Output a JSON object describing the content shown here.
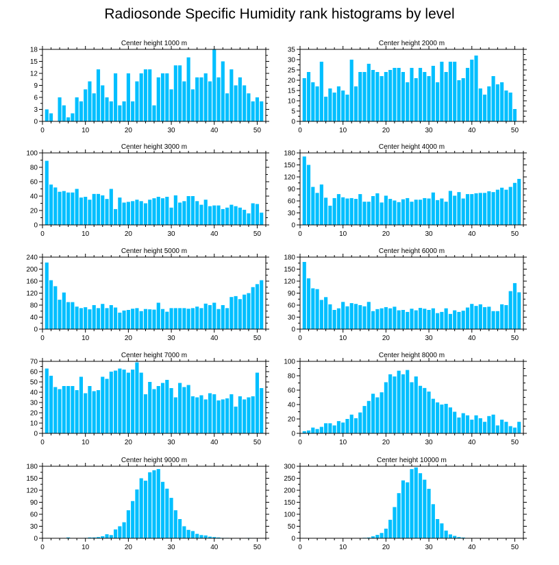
{
  "figure": {
    "title": "Radiosonde Specific Humidity rank histograms by level"
  },
  "style": {
    "bar_color": "#00bfff",
    "axis_color": "#000000"
  },
  "chart_data": [
    {
      "type": "bar",
      "title": "Center height 1000 m",
      "xlim": [
        0,
        52
      ],
      "xticks": [
        0,
        10,
        20,
        30,
        40,
        50
      ],
      "ylim": [
        0,
        18
      ],
      "yticks": [
        0,
        3,
        6,
        9,
        12,
        15,
        18
      ],
      "x": [
        1,
        2,
        3,
        4,
        5,
        6,
        7,
        8,
        9,
        10,
        11,
        12,
        13,
        14,
        15,
        16,
        17,
        18,
        19,
        20,
        21,
        22,
        23,
        24,
        25,
        26,
        27,
        28,
        29,
        30,
        31,
        32,
        33,
        34,
        35,
        36,
        37,
        38,
        39,
        40,
        41,
        42,
        43,
        44,
        45,
        46,
        47,
        48,
        49,
        50,
        51
      ],
      "values": [
        3,
        2,
        0,
        6,
        4,
        1,
        2,
        6,
        5,
        8,
        10,
        7,
        13,
        9,
        6,
        5,
        12,
        4,
        5,
        12,
        5,
        10,
        12,
        13,
        13,
        4,
        11,
        12,
        12,
        8,
        14,
        14,
        10,
        16,
        8,
        11,
        11,
        12,
        10,
        18,
        11,
        15,
        7,
        13,
        9,
        11,
        9,
        7,
        5,
        6,
        5
      ]
    },
    {
      "type": "bar",
      "title": "Center height 2000 m",
      "xlim": [
        0,
        52
      ],
      "xticks": [
        0,
        10,
        20,
        30,
        40,
        50
      ],
      "ylim": [
        0,
        35
      ],
      "yticks": [
        0,
        5,
        10,
        15,
        20,
        25,
        30,
        35
      ],
      "x": [
        1,
        2,
        3,
        4,
        5,
        6,
        7,
        8,
        9,
        10,
        11,
        12,
        13,
        14,
        15,
        16,
        17,
        18,
        19,
        20,
        21,
        22,
        23,
        24,
        25,
        26,
        27,
        28,
        29,
        30,
        31,
        32,
        33,
        34,
        35,
        36,
        37,
        38,
        39,
        40,
        41,
        42,
        43,
        44,
        45,
        46,
        47,
        48,
        49,
        50,
        51
      ],
      "values": [
        21,
        24,
        19,
        17,
        29,
        12,
        16,
        14,
        17,
        15,
        13,
        30,
        17,
        24,
        24,
        28,
        25,
        24,
        22,
        24,
        25,
        26,
        26,
        24,
        19,
        26,
        21,
        26,
        24,
        22,
        27,
        19,
        29,
        24,
        29,
        29,
        20,
        21,
        26,
        30,
        32,
        16,
        13,
        17,
        22,
        18,
        19,
        15,
        14,
        6,
        0
      ]
    },
    {
      "type": "bar",
      "title": "Center height 3000 m",
      "xlim": [
        0,
        52
      ],
      "xticks": [
        0,
        10,
        20,
        30,
        40,
        50
      ],
      "ylim": [
        0,
        100
      ],
      "yticks": [
        0,
        20,
        40,
        60,
        80,
        100
      ],
      "x": [
        1,
        2,
        3,
        4,
        5,
        6,
        7,
        8,
        9,
        10,
        11,
        12,
        13,
        14,
        15,
        16,
        17,
        18,
        19,
        20,
        21,
        22,
        23,
        24,
        25,
        26,
        27,
        28,
        29,
        30,
        31,
        32,
        33,
        34,
        35,
        36,
        37,
        38,
        39,
        40,
        41,
        42,
        43,
        44,
        45,
        46,
        47,
        48,
        49,
        50,
        51
      ],
      "values": [
        89,
        56,
        52,
        46,
        47,
        45,
        45,
        50,
        38,
        39,
        35,
        43,
        43,
        41,
        36,
        50,
        22,
        38,
        31,
        32,
        33,
        35,
        33,
        30,
        35,
        37,
        39,
        37,
        39,
        24,
        41,
        31,
        33,
        40,
        40,
        33,
        28,
        35,
        26,
        27,
        27,
        22,
        24,
        28,
        26,
        24,
        21,
        16,
        30,
        29,
        17
      ]
    },
    {
      "type": "bar",
      "title": "Center height 4000 m",
      "xlim": [
        0,
        52
      ],
      "xticks": [
        0,
        10,
        20,
        30,
        40,
        50
      ],
      "ylim": [
        0,
        180
      ],
      "yticks": [
        0,
        30,
        60,
        90,
        120,
        150,
        180
      ],
      "x": [
        1,
        2,
        3,
        4,
        5,
        6,
        7,
        8,
        9,
        10,
        11,
        12,
        13,
        14,
        15,
        16,
        17,
        18,
        19,
        20,
        21,
        22,
        23,
        24,
        25,
        26,
        27,
        28,
        29,
        30,
        31,
        32,
        33,
        34,
        35,
        36,
        37,
        38,
        39,
        40,
        41,
        42,
        43,
        44,
        45,
        46,
        47,
        48,
        49,
        50,
        51
      ],
      "values": [
        171,
        150,
        95,
        80,
        101,
        68,
        48,
        67,
        77,
        69,
        66,
        67,
        65,
        77,
        58,
        58,
        72,
        79,
        56,
        73,
        65,
        61,
        57,
        64,
        67,
        58,
        63,
        63,
        67,
        66,
        81,
        62,
        66,
        58,
        85,
        73,
        82,
        66,
        77,
        77,
        79,
        80,
        80,
        84,
        82,
        88,
        93,
        88,
        95,
        105,
        115
      ]
    },
    {
      "type": "bar",
      "title": "Center height 5000 m",
      "xlim": [
        0,
        52
      ],
      "xticks": [
        0,
        10,
        20,
        30,
        40,
        50
      ],
      "ylim": [
        0,
        240
      ],
      "yticks": [
        0,
        40,
        80,
        120,
        160,
        200,
        240
      ],
      "x": [
        1,
        2,
        3,
        4,
        5,
        6,
        7,
        8,
        9,
        10,
        11,
        12,
        13,
        14,
        15,
        16,
        17,
        18,
        19,
        20,
        21,
        22,
        23,
        24,
        25,
        26,
        27,
        28,
        29,
        30,
        31,
        32,
        33,
        34,
        35,
        36,
        37,
        38,
        39,
        40,
        41,
        42,
        43,
        44,
        45,
        46,
        47,
        48,
        49,
        50,
        51
      ],
      "values": [
        222,
        163,
        143,
        98,
        122,
        90,
        90,
        75,
        70,
        73,
        66,
        80,
        70,
        84,
        70,
        80,
        72,
        55,
        62,
        64,
        68,
        70,
        60,
        67,
        66,
        65,
        88,
        67,
        58,
        70,
        70,
        70,
        70,
        68,
        70,
        75,
        70,
        85,
        80,
        88,
        67,
        80,
        70,
        107,
        110,
        100,
        115,
        120,
        140,
        150,
        163
      ]
    },
    {
      "type": "bar",
      "title": "Center height 6000 m",
      "xlim": [
        0,
        52
      ],
      "xticks": [
        0,
        10,
        20,
        30,
        40,
        50
      ],
      "ylim": [
        0,
        180
      ],
      "yticks": [
        0,
        30,
        60,
        90,
        120,
        150,
        180
      ],
      "x": [
        1,
        2,
        3,
        4,
        5,
        6,
        7,
        8,
        9,
        10,
        11,
        12,
        13,
        14,
        15,
        16,
        17,
        18,
        19,
        20,
        21,
        22,
        23,
        24,
        25,
        26,
        27,
        28,
        29,
        30,
        31,
        32,
        33,
        34,
        35,
        36,
        37,
        38,
        39,
        40,
        41,
        42,
        43,
        44,
        45,
        46,
        47,
        48,
        49,
        50,
        51
      ],
      "values": [
        168,
        127,
        102,
        100,
        73,
        80,
        62,
        48,
        52,
        68,
        57,
        65,
        63,
        60,
        57,
        68,
        45,
        50,
        52,
        55,
        52,
        56,
        47,
        48,
        43,
        51,
        47,
        53,
        51,
        48,
        52,
        40,
        43,
        52,
        38,
        47,
        43,
        46,
        54,
        63,
        58,
        62,
        55,
        56,
        45,
        45,
        62,
        60,
        95,
        115,
        92
      ]
    },
    {
      "type": "bar",
      "title": "Center height 7000 m",
      "xlim": [
        0,
        52
      ],
      "xticks": [
        0,
        10,
        20,
        30,
        40,
        50
      ],
      "ylim": [
        0,
        70
      ],
      "yticks": [
        0,
        10,
        20,
        30,
        40,
        50,
        60,
        70
      ],
      "x": [
        1,
        2,
        3,
        4,
        5,
        6,
        7,
        8,
        9,
        10,
        11,
        12,
        13,
        14,
        15,
        16,
        17,
        18,
        19,
        20,
        21,
        22,
        23,
        24,
        25,
        26,
        27,
        28,
        29,
        30,
        31,
        32,
        33,
        34,
        35,
        36,
        37,
        38,
        39,
        40,
        41,
        42,
        43,
        44,
        45,
        46,
        47,
        48,
        49,
        50,
        51
      ],
      "values": [
        63,
        56,
        45,
        43,
        46,
        46,
        46,
        42,
        55,
        39,
        46,
        41,
        42,
        55,
        53,
        60,
        61,
        63,
        62,
        59,
        62,
        69,
        59,
        38,
        50,
        43,
        46,
        49,
        52,
        44,
        35,
        49,
        45,
        47,
        36,
        35,
        37,
        33,
        39,
        38,
        32,
        33,
        34,
        38,
        26,
        36,
        33,
        35,
        36,
        59,
        44
      ]
    },
    {
      "type": "bar",
      "title": "Center height 8000 m",
      "xlim": [
        0,
        52
      ],
      "xticks": [
        0,
        10,
        20,
        30,
        40,
        50
      ],
      "ylim": [
        0,
        100
      ],
      "yticks": [
        0,
        20,
        40,
        60,
        80,
        100
      ],
      "x": [
        1,
        2,
        3,
        4,
        5,
        6,
        7,
        8,
        9,
        10,
        11,
        12,
        13,
        14,
        15,
        16,
        17,
        18,
        19,
        20,
        21,
        22,
        23,
        24,
        25,
        26,
        27,
        28,
        29,
        30,
        31,
        32,
        33,
        34,
        35,
        36,
        37,
        38,
        39,
        40,
        41,
        42,
        43,
        44,
        45,
        46,
        47,
        48,
        49,
        50,
        51
      ],
      "values": [
        3,
        4,
        8,
        6,
        9,
        14,
        14,
        11,
        17,
        15,
        20,
        26,
        21,
        29,
        38,
        45,
        55,
        50,
        57,
        71,
        82,
        79,
        87,
        82,
        88,
        71,
        79,
        66,
        63,
        58,
        48,
        43,
        40,
        41,
        36,
        30,
        22,
        28,
        25,
        19,
        25,
        21,
        16,
        24,
        26,
        11,
        19,
        16,
        10,
        8,
        16
      ]
    },
    {
      "type": "bar",
      "title": "Center height 9000 m",
      "xlim": [
        0,
        52
      ],
      "xticks": [
        0,
        10,
        20,
        30,
        40,
        50
      ],
      "ylim": [
        0,
        180
      ],
      "yticks": [
        0,
        30,
        60,
        90,
        120,
        150,
        180
      ],
      "x": [
        1,
        2,
        3,
        4,
        5,
        6,
        7,
        8,
        9,
        10,
        11,
        12,
        13,
        14,
        15,
        16,
        17,
        18,
        19,
        20,
        21,
        22,
        23,
        24,
        25,
        26,
        27,
        28,
        29,
        30,
        31,
        32,
        33,
        34,
        35,
        36,
        37,
        38,
        39,
        40,
        41,
        42,
        43,
        44,
        45,
        46,
        47,
        48,
        49,
        50,
        51
      ],
      "values": [
        0,
        0,
        0,
        0,
        0,
        2,
        0,
        0,
        0,
        1,
        2,
        2,
        3,
        5,
        10,
        8,
        22,
        30,
        40,
        70,
        93,
        122,
        150,
        144,
        165,
        170,
        173,
        141,
        124,
        101,
        70,
        48,
        30,
        21,
        18,
        11,
        8,
        7,
        4,
        3,
        2,
        1,
        1,
        0,
        0,
        0,
        0,
        1,
        0,
        0,
        0
      ]
    },
    {
      "type": "bar",
      "title": "Center height 10000 m",
      "xlim": [
        0,
        52
      ],
      "xticks": [
        0,
        10,
        20,
        30,
        40,
        50
      ],
      "ylim": [
        0,
        300
      ],
      "yticks": [
        0,
        50,
        100,
        150,
        200,
        250,
        300
      ],
      "x": [
        1,
        2,
        3,
        4,
        5,
        6,
        7,
        8,
        9,
        10,
        11,
        12,
        13,
        14,
        15,
        16,
        17,
        18,
        19,
        20,
        21,
        22,
        23,
        24,
        25,
        26,
        27,
        28,
        29,
        30,
        31,
        32,
        33,
        34,
        35,
        36,
        37,
        38,
        39,
        40,
        41,
        42,
        43,
        44,
        45,
        46,
        47,
        48,
        49,
        50,
        51
      ],
      "values": [
        0,
        0,
        0,
        0,
        0,
        0,
        0,
        0,
        0,
        0,
        0,
        0,
        0,
        0,
        2,
        3,
        8,
        14,
        22,
        40,
        77,
        130,
        188,
        241,
        233,
        288,
        295,
        271,
        244,
        206,
        142,
        80,
        62,
        32,
        16,
        10,
        5,
        3,
        0,
        0,
        0,
        0,
        0,
        0,
        0,
        0,
        0,
        0,
        0,
        0,
        0
      ]
    }
  ]
}
